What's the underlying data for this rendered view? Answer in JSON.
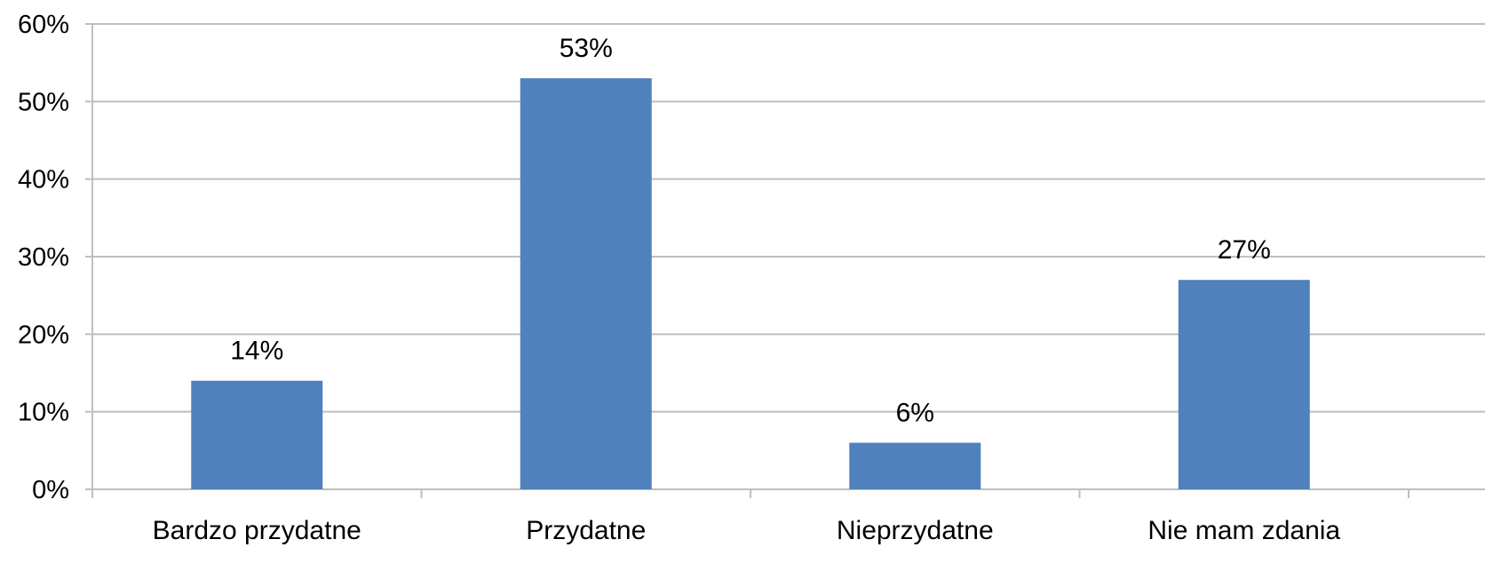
{
  "chart_data": {
    "type": "bar",
    "title": "",
    "xlabel": "",
    "ylabel": "",
    "categories": [
      "Bardzo przydatne",
      "Przydatne",
      "Nieprzydatne",
      "Nie mam zdania"
    ],
    "values": [
      14,
      53,
      6,
      27
    ],
    "data_labels": [
      "14%",
      "53%",
      "6%",
      "27%"
    ],
    "y_ticks": [
      0,
      10,
      20,
      30,
      40,
      50,
      60
    ],
    "y_tick_labels": [
      "0%",
      "10%",
      "20%",
      "30%",
      "40%",
      "50%",
      "60%"
    ],
    "ylim": [
      0,
      60
    ],
    "grid": true,
    "legend": "none",
    "bar_color": "#4F81BD",
    "grid_color": "#BFBFBF",
    "axis_color": "#BFBFBF"
  }
}
